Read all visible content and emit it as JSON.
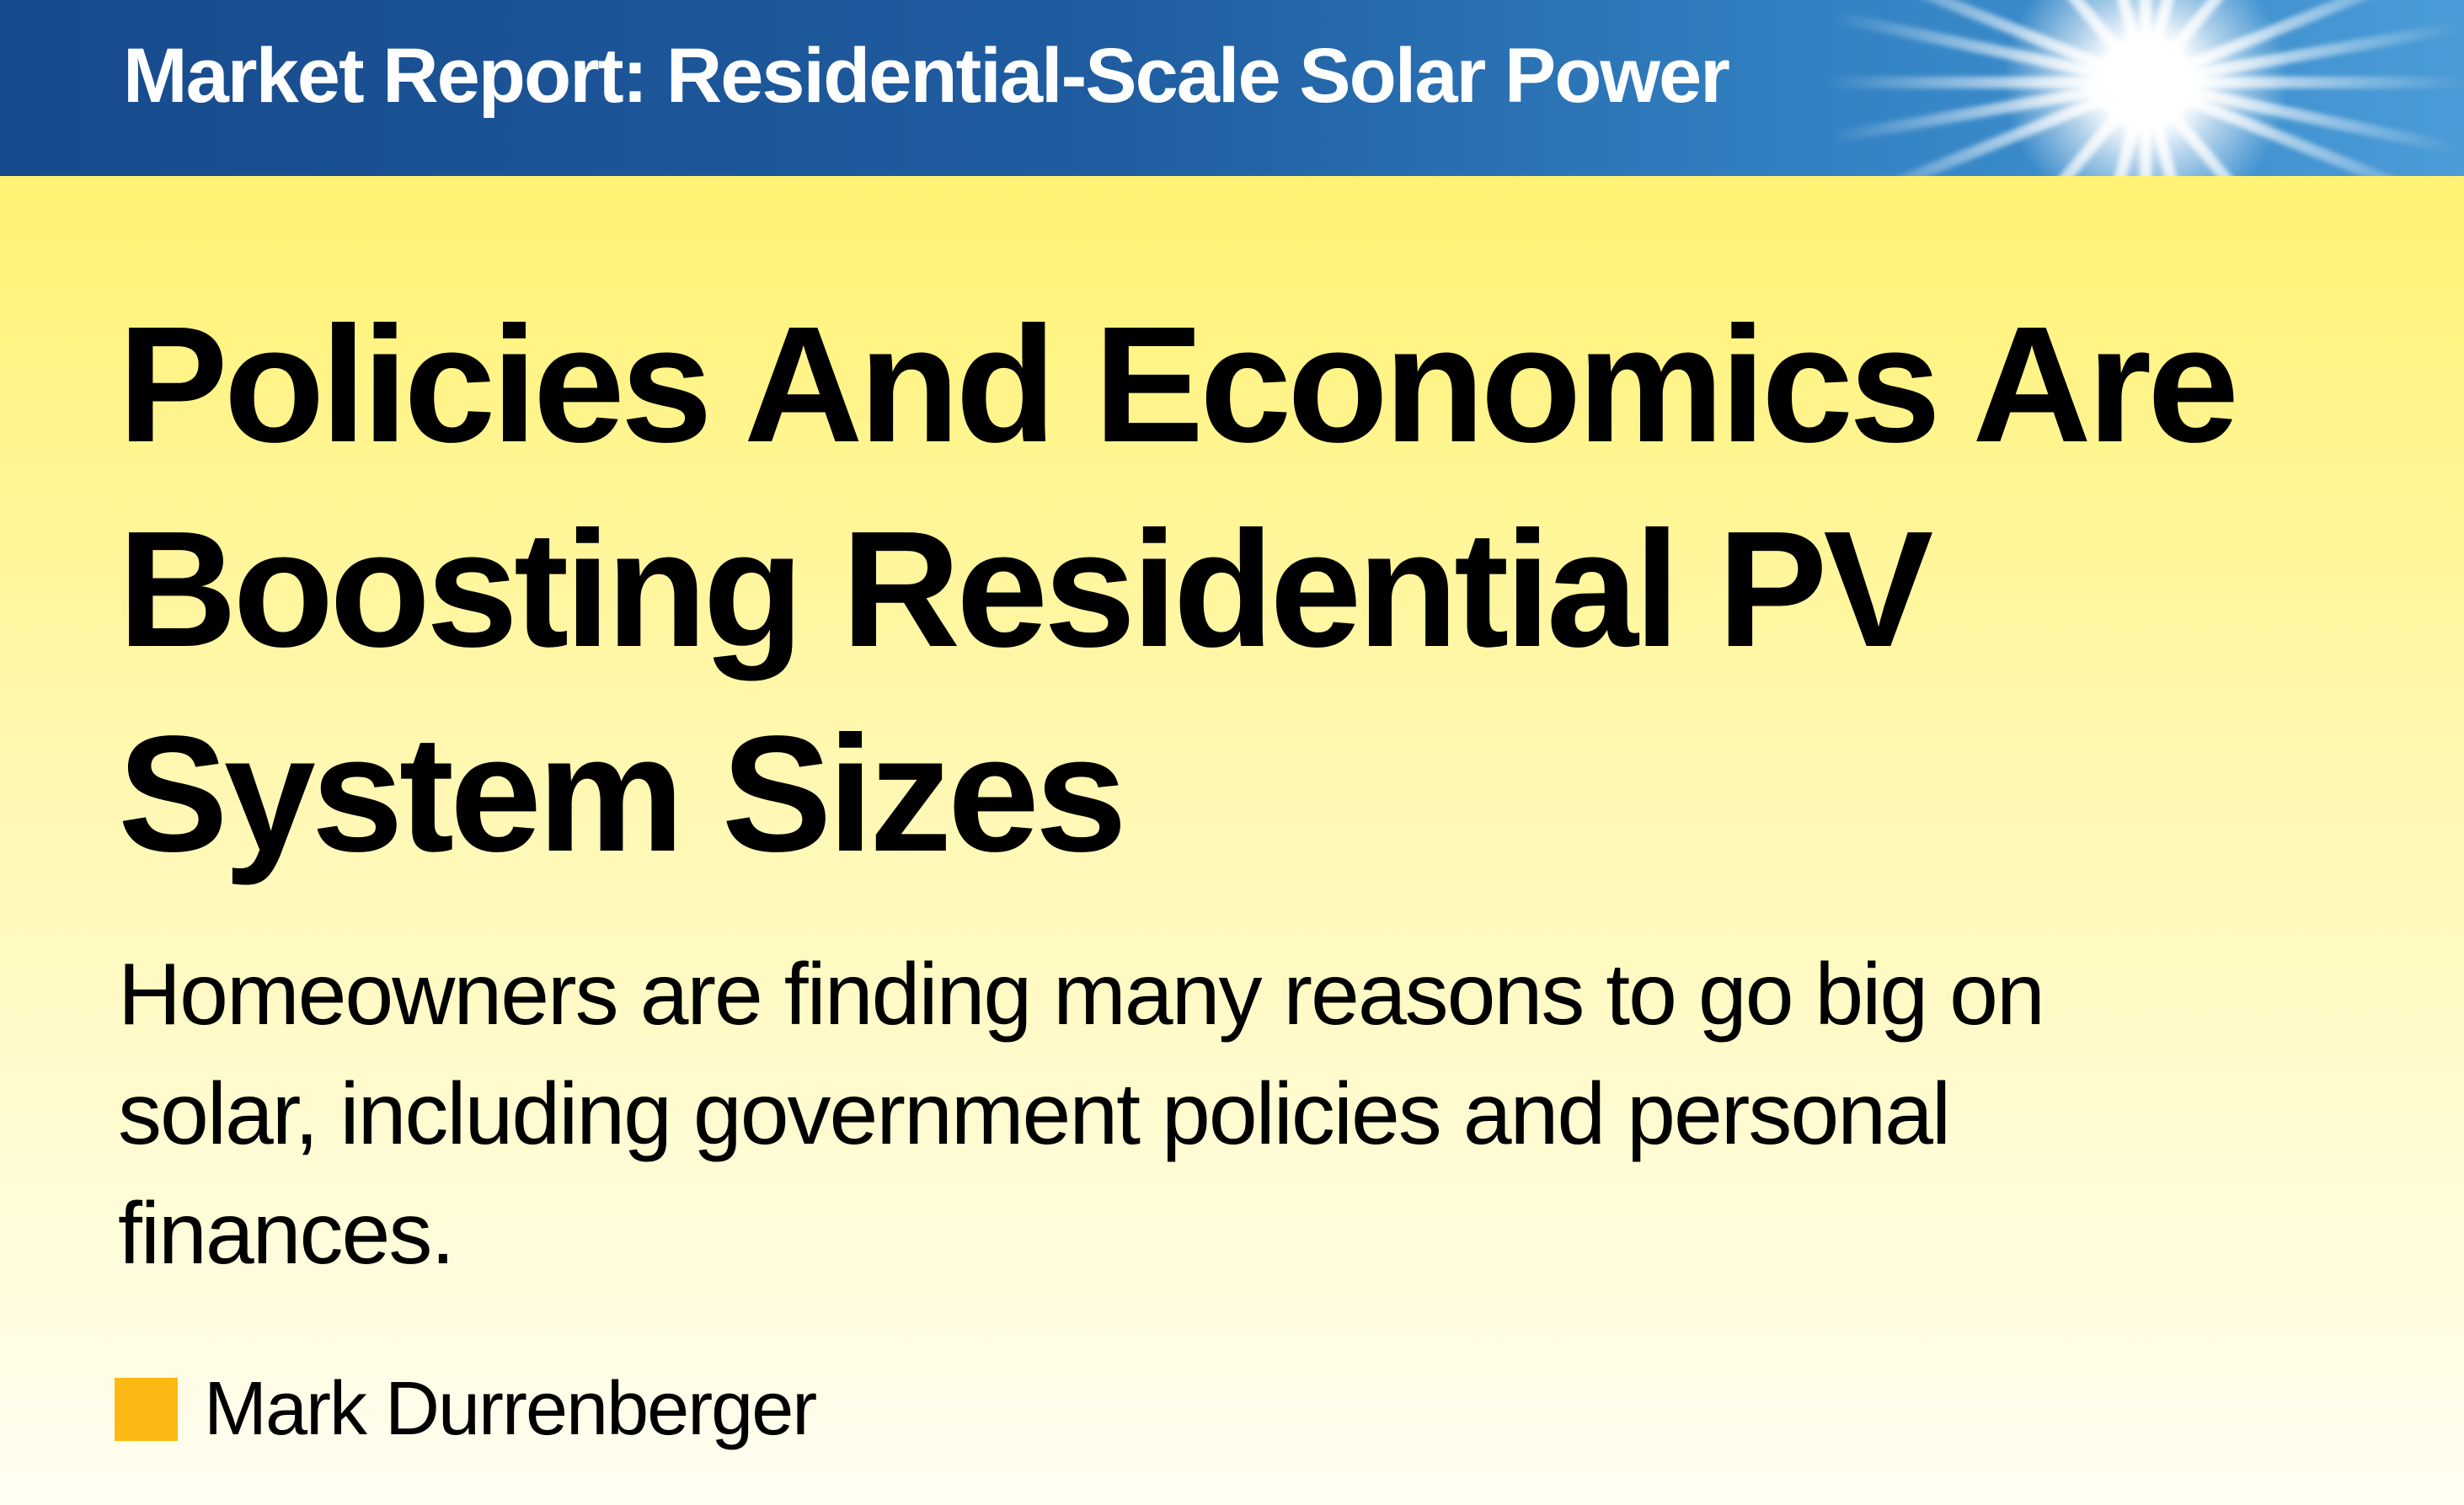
{
  "banner": {
    "title": "Market Report: Residential-Scale Solar Power",
    "image": "sun-burst-sky"
  },
  "headline": {
    "lines": [
      "Policies And Economics Are",
      "Boosting Residential PV",
      "System Sizes"
    ]
  },
  "deck": {
    "lines": [
      "Homeowners are finding many reasons to go big on",
      "solar, including government policies and personal",
      "finances."
    ]
  },
  "author": {
    "name": "Mark Durrenberger",
    "marker_color": "#fdb913"
  },
  "colors": {
    "banner_blue": "#174a8c",
    "background_yellow": "#fff273"
  }
}
